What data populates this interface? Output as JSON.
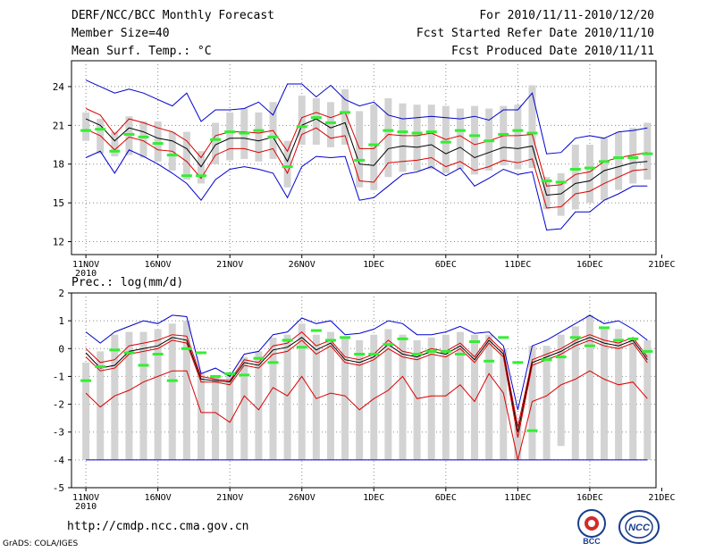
{
  "header": {
    "title": "DERF/NCC/BCC Monthly Forecast",
    "member_size": "Member Size=40",
    "variable": "Mean Surf. Temp.: °C",
    "period": "For 2010/11/11-2010/12/20",
    "started": "Fcst Started Refer Date 2010/11/10",
    "produced": "Fcst Produced Date 2010/11/11"
  },
  "footer": {
    "url": "http://cmdp.ncc.cma.gov.cn",
    "grads": "GrADS: COLA/IGES"
  },
  "logos": {
    "bcc": "BCC",
    "ncc": "NCC"
  },
  "colors": {
    "bar": "#d3d3d3",
    "green": "#33ee33",
    "red": "#dd0000",
    "blue": "#0000cc",
    "grid": "#888888"
  },
  "chart_data": [
    {
      "type": "line",
      "title": "Mean Surf. Temp.: °C",
      "x_labels": [
        "11NOV",
        "16NOV",
        "21NOV",
        "26NOV",
        "1DEC",
        "6DEC",
        "11DEC",
        "16DEC",
        "21DEC"
      ],
      "x_year_label": "2010",
      "ylim": [
        11,
        26
      ],
      "yticks": [
        12,
        15,
        18,
        21,
        24
      ],
      "grid": true,
      "series": [
        {
          "name": "max",
          "color": "blue",
          "values": [
            24.5,
            24,
            23.5,
            23.8,
            23.5,
            23,
            22.5,
            23.5,
            21.3,
            22.2,
            22.2,
            22.3,
            22.8,
            21.8,
            24.2,
            24.2,
            23.2,
            24.1,
            23,
            22.5,
            22.8,
            21.8,
            21.5,
            21.6,
            21.7,
            21.6,
            21.5,
            21.7,
            21.4,
            22.2,
            22.2,
            23.5,
            18.8,
            18.9,
            20,
            20.2,
            20,
            20.5,
            20.6,
            20.8
          ]
        },
        {
          "name": "upper",
          "color": "red",
          "values": [
            22.3,
            21.8,
            20.3,
            21.5,
            21.2,
            20.8,
            20.5,
            19.8,
            18.5,
            20.2,
            20.5,
            20.5,
            20.4,
            20.6,
            19,
            21.6,
            22,
            21.6,
            22,
            19.2,
            19.2,
            20.3,
            20.2,
            20.2,
            20.4,
            19.9,
            20.2,
            19.5,
            19.8,
            20.2,
            20.2,
            20.3,
            16.3,
            16.4,
            17.2,
            17.4,
            18.2,
            18.5,
            18.7,
            18.9
          ]
        },
        {
          "name": "mean",
          "color": "black",
          "values": [
            21.5,
            21,
            19.8,
            20.8,
            20.5,
            20,
            19.8,
            19.2,
            17.8,
            19.5,
            20,
            20,
            19.8,
            20.1,
            18.2,
            21,
            21.5,
            20.8,
            21.2,
            18,
            17.9,
            19.2,
            19.4,
            19.3,
            19.5,
            18.8,
            19.3,
            18.5,
            18.9,
            19.3,
            19.2,
            19.4,
            15.6,
            15.7,
            16.5,
            16.7,
            17.5,
            17.8,
            18.1,
            18.2
          ]
        },
        {
          "name": "lower",
          "color": "red",
          "values": [
            20.7,
            20.2,
            19.1,
            20.1,
            19.8,
            19.1,
            19,
            18.2,
            16.9,
            18.7,
            19.2,
            19.2,
            18.9,
            19.2,
            17.3,
            20.3,
            20.8,
            20,
            20.2,
            16.7,
            16.6,
            18.1,
            18.2,
            18.3,
            18.5,
            17.8,
            18.2,
            17.5,
            17.8,
            18.3,
            18.1,
            18.4,
            14.6,
            14.7,
            15.7,
            15.9,
            16.5,
            17,
            17.5,
            17.6
          ]
        },
        {
          "name": "min",
          "color": "blue",
          "values": [
            18.5,
            19,
            17.3,
            19.1,
            18.6,
            18,
            17.3,
            16.5,
            15.2,
            16.8,
            17.6,
            17.8,
            17.6,
            17.3,
            15.4,
            17.8,
            18.6,
            18.5,
            18.6,
            15.2,
            15.4,
            16.3,
            17.2,
            17.4,
            17.8,
            17.1,
            17.7,
            16.3,
            16.9,
            17.6,
            17.2,
            17.4,
            12.9,
            13,
            14.3,
            14.3,
            15.2,
            15.7,
            16.3,
            16.3
          ]
        }
      ],
      "bars_low": [
        19.8,
        18.8,
        18.6,
        18.7,
        18.5,
        18.2,
        17.5,
        16.8,
        16.5,
        18,
        18.3,
        18.4,
        18.2,
        18.4,
        16.2,
        19.5,
        19.5,
        19.3,
        19.5,
        16.2,
        16,
        17,
        17.4,
        17.5,
        17.6,
        17.3,
        17.6,
        17.2,
        17.5,
        17.9,
        17.6,
        17.7,
        14.5,
        14,
        14.5,
        15,
        15.2,
        16,
        16.5,
        16.8
      ],
      "bars_high": [
        22,
        21.5,
        20.5,
        21.7,
        21.3,
        21.3,
        20.5,
        20.5,
        19,
        21.2,
        22,
        22.3,
        22,
        22.8,
        19.8,
        23.3,
        23.1,
        22.8,
        23.8,
        22.1,
        22.6,
        23.1,
        22.7,
        22.6,
        22.6,
        22.5,
        22.3,
        22.5,
        22.3,
        22.5,
        22.6,
        24.1,
        17,
        17.3,
        19.5,
        19.5,
        20,
        20.5,
        20.8,
        21.2
      ],
      "observed": [
        20.6,
        20.7,
        19,
        20.3,
        20.1,
        19.6,
        18.7,
        17.1,
        17.1,
        19.9,
        20.5,
        20.4,
        20.6,
        20.1,
        17.8,
        20.9,
        21.6,
        21.2,
        22,
        18.3,
        19.5,
        20.6,
        20.5,
        20.4,
        20.5,
        19.7,
        20.6,
        20.2,
        19.8,
        20.3,
        20.6,
        20.4,
        16.7,
        16.6,
        17.6,
        17.7,
        18.2,
        18.5,
        18.5,
        18.8
      ]
    },
    {
      "type": "line",
      "title": "Prec.: log(mm/d)",
      "x_labels": [
        "11NOV",
        "16NOV",
        "21NOV",
        "26NOV",
        "1DEC",
        "6DEC",
        "11DEC",
        "16DEC",
        "21DEC"
      ],
      "x_year_label": "2010",
      "ylim": [
        -5,
        2
      ],
      "yticks": [
        -5,
        -4,
        -3,
        -2,
        -1,
        0,
        1,
        2
      ],
      "grid": true,
      "series": [
        {
          "name": "max",
          "color": "blue",
          "values": [
            0.6,
            0.2,
            0.6,
            0.8,
            1,
            0.9,
            1.2,
            1.15,
            -0.9,
            -0.7,
            -1,
            -0.2,
            -0.1,
            0.5,
            0.6,
            1.1,
            0.9,
            1,
            0.5,
            0.55,
            0.7,
            1,
            0.9,
            0.5,
            0.5,
            0.6,
            0.8,
            0.55,
            0.6,
            0.1,
            -2.2,
            0.1,
            0.3,
            0.6,
            0.9,
            1.2,
            0.9,
            1,
            0.7,
            0.3
          ]
        },
        {
          "name": "upper",
          "color": "red",
          "values": [
            0,
            -0.5,
            -0.4,
            0.1,
            0.2,
            0.3,
            0.5,
            0.45,
            -1,
            -1.1,
            -1.15,
            -0.4,
            -0.5,
            0.1,
            0.2,
            0.6,
            0.1,
            0.3,
            -0.3,
            -0.4,
            -0.2,
            0.3,
            -0.1,
            -0.2,
            0,
            -0.1,
            0.2,
            -0.3,
            0.4,
            -0.1,
            -2.8,
            -0.4,
            -0.2,
            0,
            0.3,
            0.5,
            0.3,
            0.2,
            0.4,
            -0.3
          ]
        },
        {
          "name": "mean",
          "color": "black",
          "values": [
            -0.15,
            -0.7,
            -0.6,
            -0.1,
            0,
            0.1,
            0.4,
            0.3,
            -1.1,
            -1.15,
            -1.2,
            -0.5,
            -0.6,
            -0.05,
            0.05,
            0.4,
            -0.05,
            0.2,
            -0.4,
            -0.5,
            -0.3,
            0.15,
            -0.2,
            -0.3,
            -0.1,
            -0.2,
            0.1,
            -0.4,
            0.3,
            -0.2,
            -3,
            -0.5,
            -0.3,
            -0.1,
            0.2,
            0.4,
            0.2,
            0.1,
            0.3,
            -0.4
          ]
        },
        {
          "name": "lower",
          "color": "red",
          "values": [
            -0.3,
            -0.8,
            -0.7,
            -0.2,
            -0.1,
            0,
            0.3,
            0.2,
            -1.2,
            -1.2,
            -1.3,
            -0.6,
            -0.7,
            -0.2,
            -0.1,
            0.3,
            -0.2,
            0.1,
            -0.5,
            -0.6,
            -0.4,
            0,
            -0.3,
            -0.4,
            -0.2,
            -0.3,
            0,
            -0.5,
            0.2,
            -0.3,
            -3.2,
            -0.6,
            -0.4,
            -0.2,
            0.1,
            0.3,
            0.1,
            0,
            0.2,
            -0.5
          ]
        },
        {
          "name": "min",
          "color": "red",
          "values": [
            -1.6,
            -2.1,
            -1.7,
            -1.5,
            -1.2,
            -1,
            -0.8,
            -0.8,
            -2.3,
            -2.3,
            -2.65,
            -1.7,
            -2.2,
            -1.4,
            -1.7,
            -1,
            -1.8,
            -1.6,
            -1.7,
            -2.2,
            -1.8,
            -1.5,
            -1,
            -1.8,
            -1.7,
            -1.7,
            -1.3,
            -1.9,
            -0.9,
            -1.6,
            -4,
            -1.9,
            -1.7,
            -1.3,
            -1.1,
            -0.8,
            -1.1,
            -1.3,
            -1.2,
            -1.8
          ]
        },
        {
          "name": "floor",
          "color": "blue",
          "values": [
            -4,
            -4,
            -4,
            -4,
            -4,
            -4,
            -4,
            -4,
            -4,
            -4,
            -4,
            -4,
            -4,
            -4,
            -4,
            -4,
            -4,
            -4,
            -4,
            -4,
            -4,
            -4,
            -4,
            -4,
            -4,
            -4,
            -4,
            -4,
            -4,
            -4,
            -4,
            -4,
            -4,
            -4,
            -4,
            -4,
            -4,
            -4,
            -4,
            -4
          ]
        }
      ],
      "bars_low": [
        -4,
        -4,
        -4,
        -4,
        -4,
        -4,
        -4,
        -4,
        -4,
        -4,
        -4,
        -4,
        -4,
        -4,
        -4,
        -4,
        -4,
        -4,
        -4,
        -4,
        -4,
        -4,
        -4,
        -4,
        -4,
        -4,
        -4,
        -4,
        -4,
        -4,
        -4,
        -4,
        -4,
        -3.5,
        -4,
        -4,
        -4,
        -4,
        -4,
        -4
      ],
      "bars_high": [
        -0.5,
        -0.1,
        0.5,
        0.6,
        0.6,
        0.7,
        0.9,
        1,
        -0.9,
        -1,
        -0.9,
        -0.3,
        -0.1,
        0.4,
        0.5,
        0.9,
        0.5,
        0.6,
        0.4,
        0.3,
        0.5,
        0.7,
        0.5,
        0.3,
        0.4,
        0.5,
        0.6,
        0.5,
        0.5,
        0,
        -2.7,
        0.1,
        0.1,
        0.5,
        0.8,
        1.2,
        0.7,
        0.7,
        0.4,
        0.3
      ],
      "observed": [
        -1.15,
        -0.65,
        -0.05,
        -0.15,
        -0.6,
        -0.2,
        -1.15,
        0,
        -0.15,
        -1,
        -0.9,
        -0.95,
        -0.35,
        -0.5,
        0.3,
        0.05,
        0.65,
        0.3,
        0.4,
        -0.2,
        -0.2,
        0.15,
        0.35,
        -0.2,
        -0.1,
        -0.1,
        -0.2,
        0.25,
        -0.45,
        0.4,
        -0.5,
        -2.95,
        -0.4,
        -0.3,
        0.4,
        0.1,
        0.75,
        0.3,
        0.35,
        -0.1
      ]
    }
  ]
}
